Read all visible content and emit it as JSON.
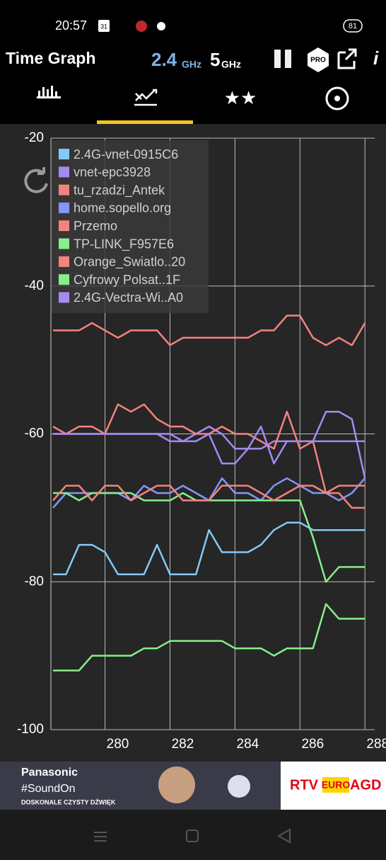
{
  "status": {
    "time": "20:57",
    "calendar": "31",
    "battery": "81"
  },
  "app_bar": {
    "title": "Time Graph",
    "band_24": "2.4",
    "band_24_unit": "GHz",
    "band_5": "5",
    "band_5_unit": "GHz",
    "pro": "PRO"
  },
  "chart_data": {
    "type": "line",
    "grid": true,
    "legend": "top-left",
    "x": [
      278.4,
      278.8,
      279.2,
      279.6,
      280.0,
      280.4,
      280.8,
      281.2,
      281.6,
      282.0,
      282.4,
      282.8,
      283.2,
      283.6,
      284.0,
      284.4,
      284.8,
      285.2,
      285.6,
      286.0,
      286.4,
      286.8,
      287.2,
      287.6,
      288.0
    ],
    "xlim": [
      278.4,
      288.3
    ],
    "xticks": [
      280,
      282,
      284,
      286,
      288
    ],
    "ylim": [
      -100,
      -20
    ],
    "yticks": [
      -20,
      -40,
      -60,
      -80,
      -100
    ],
    "series": [
      {
        "name": "2.4G-vnet-0915C6",
        "color": "#84c9f7",
        "values": [
          -79,
          -79,
          -75,
          -75,
          -76,
          -79,
          -79,
          -79,
          -75,
          -79,
          -79,
          -79,
          -73,
          -76,
          -76,
          -76,
          -75,
          -73,
          -72,
          -72,
          -73,
          -73,
          -73,
          -73,
          -73
        ]
      },
      {
        "name": "vnet-epc3928",
        "color": "#a58af2",
        "values": [
          -60,
          -60,
          -60,
          -60,
          -60,
          -60,
          -60,
          -60,
          -60,
          -61,
          -61,
          -60,
          -59,
          -60,
          -62,
          -62,
          -62,
          -61,
          -61,
          -61,
          -61,
          -57,
          -57,
          -58,
          -66
        ]
      },
      {
        "name": "tu_rzadzi_Antek",
        "color": "#f4837d",
        "values": [
          -46,
          -46,
          -46,
          -45,
          -46,
          -47,
          -46,
          -46,
          -46,
          -48,
          -47,
          -47,
          -47,
          -47,
          -47,
          -47,
          -46,
          -46,
          -44,
          -44,
          -47,
          -48,
          -47,
          -48,
          -45
        ]
      },
      {
        "name": "home.sopello.org",
        "color": "#8397f7",
        "values": [
          -70,
          -68,
          -68,
          -68,
          -68,
          -68,
          -69,
          -67,
          -68,
          -68,
          -67,
          -68,
          -69,
          -66,
          -68,
          -68,
          -69,
          -67,
          -66,
          -67,
          -68,
          -68,
          -69,
          -68,
          -66
        ]
      },
      {
        "name": "Przemo",
        "color": "#f4837d",
        "values": [
          -59,
          -60,
          -59,
          -59,
          -60,
          -56,
          -57,
          -56,
          -58,
          -59,
          -59,
          -60,
          -60,
          -59,
          -60,
          -60,
          -61,
          -62,
          -57,
          -62,
          -61,
          -68,
          -68,
          -70,
          -70
        ]
      },
      {
        "name": "TP-LINK_F957E6",
        "color": "#86ef8a",
        "values": [
          -68,
          -68,
          -69,
          -68,
          -68,
          -68,
          -68,
          -69,
          -69,
          -69,
          -68,
          -69,
          -69,
          -69,
          -69,
          -69,
          -69,
          -69,
          -69,
          -69,
          -74,
          -80,
          -78,
          -78,
          -78
        ]
      },
      {
        "name": "Orange_Swiatlo..20",
        "color": "#f4837d",
        "values": [
          -69,
          -67,
          -67,
          -69,
          -67,
          -67,
          -69,
          -68,
          -67,
          -67,
          -69,
          -69,
          -69,
          -67,
          -67,
          -67,
          -68,
          -69,
          -68,
          -67,
          -67,
          -68,
          -67,
          -67,
          -67
        ]
      },
      {
        "name": "Cyfrowy Polsat..1F",
        "color": "#86ef8a",
        "values": [
          -92,
          -92,
          -92,
          -90,
          -90,
          -90,
          -90,
          -89,
          -89,
          -88,
          -88,
          -88,
          -88,
          -88,
          -89,
          -89,
          -89,
          -90,
          -89,
          -89,
          -89,
          -83,
          -85,
          -85,
          -85
        ]
      },
      {
        "name": "2.4G-Vectra-Wi..A0",
        "color": "#a58af2",
        "values": [
          -60,
          -60,
          -60,
          -60,
          -60,
          -60,
          -60,
          -60,
          -60,
          -60,
          -61,
          -61,
          -60,
          -64,
          -64,
          -62,
          -59,
          -64,
          -61,
          -61,
          -61,
          -61,
          -61,
          -61,
          -61
        ]
      }
    ]
  },
  "ad": {
    "brand": "Panasonic",
    "tagline": "#SoundOn",
    "subline": "DOSKONALE CZYSTY DŹWIĘK",
    "store_1": "RTV",
    "store_2": "EURO",
    "store_3": "AGD"
  }
}
